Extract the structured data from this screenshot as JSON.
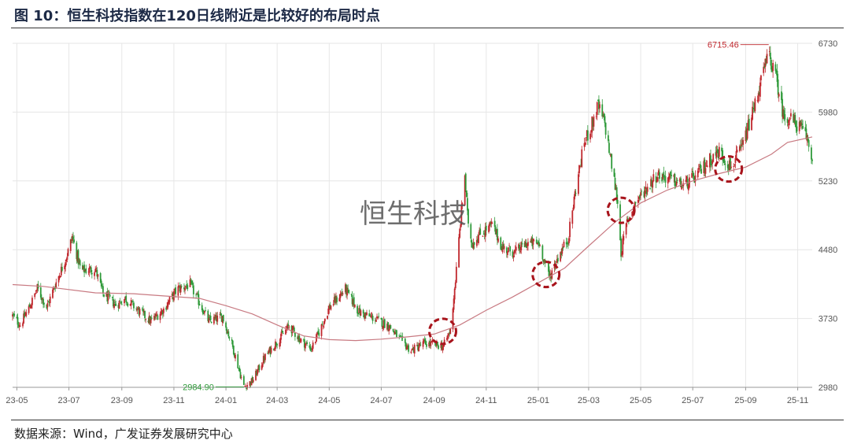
{
  "title": "图 10：恒生科技指数在120日线附近是比较好的布局时点",
  "source": "数据来源：Wind，广发证券发展研究中心",
  "colors": {
    "up": "#c0282e",
    "down": "#2f9a3a",
    "ma": "#c87a82",
    "marker": "#a8141c",
    "grid": "#e6e6e6"
  },
  "chart_data": {
    "type": "candlestick",
    "watermark": "恒生科技",
    "x_ticks": [
      "23-05",
      "23-07",
      "23-09",
      "23-11",
      "24-01",
      "24-03",
      "24-05",
      "24-07",
      "24-09",
      "24-11",
      "25-01",
      "25-03",
      "25-05",
      "25-07",
      "25-09",
      "25-11"
    ],
    "y_ticks": [
      2980,
      3730,
      4480,
      5230,
      5980,
      6730
    ],
    "ylim": [
      2980,
      6730
    ],
    "xlim": [
      "2023-04-26",
      "2025-11-18"
    ],
    "annotations": [
      {
        "date": "2025-09-28",
        "value": 6715.46,
        "label": "6715.46",
        "kind": "high"
      },
      {
        "date": "2024-01-22",
        "value": 2984.9,
        "label": "2984.90",
        "kind": "low"
      }
    ],
    "circles": [
      {
        "date": "2024-09-11",
        "value": 3590
      },
      {
        "date": "2025-01-10",
        "value": 4210
      },
      {
        "date": "2025-04-08",
        "value": 4910
      },
      {
        "date": "2025-08-12",
        "value": 5360
      }
    ],
    "price_path": [
      [
        "2023-04-26",
        3760
      ],
      [
        "2023-05-05",
        3660
      ],
      [
        "2023-05-18",
        3900
      ],
      [
        "2023-05-25",
        4060
      ],
      [
        "2023-06-05",
        3850
      ],
      [
        "2023-06-15",
        4100
      ],
      [
        "2023-06-28",
        4400
      ],
      [
        "2023-07-05",
        4620
      ],
      [
        "2023-07-15",
        4250
      ],
      [
        "2023-08-01",
        4270
      ],
      [
        "2023-08-10",
        4000
      ],
      [
        "2023-08-25",
        3880
      ],
      [
        "2023-09-05",
        3950
      ],
      [
        "2023-09-20",
        3820
      ],
      [
        "2023-10-05",
        3700
      ],
      [
        "2023-10-20",
        3830
      ],
      [
        "2023-11-05",
        4050
      ],
      [
        "2023-11-20",
        4100
      ],
      [
        "2023-12-01",
        3900
      ],
      [
        "2023-12-12",
        3700
      ],
      [
        "2023-12-28",
        3750
      ],
      [
        "2024-01-08",
        3450
      ],
      [
        "2024-01-22",
        2985
      ],
      [
        "2024-02-01",
        3050
      ],
      [
        "2024-02-15",
        3300
      ],
      [
        "2024-03-01",
        3480
      ],
      [
        "2024-03-15",
        3650
      ],
      [
        "2024-03-28",
        3500
      ],
      [
        "2024-04-10",
        3400
      ],
      [
        "2024-04-20",
        3600
      ],
      [
        "2024-05-01",
        3850
      ],
      [
        "2024-05-20",
        4050
      ],
      [
        "2024-06-05",
        3800
      ],
      [
        "2024-06-25",
        3720
      ],
      [
        "2024-07-10",
        3650
      ],
      [
        "2024-07-25",
        3480
      ],
      [
        "2024-08-05",
        3380
      ],
      [
        "2024-08-20",
        3460
      ],
      [
        "2024-09-05",
        3440
      ],
      [
        "2024-09-12",
        3430
      ],
      [
        "2024-09-20",
        3600
      ],
      [
        "2024-09-26",
        4150
      ],
      [
        "2024-10-02",
        4800
      ],
      [
        "2024-10-07",
        5300
      ],
      [
        "2024-10-10",
        4850
      ],
      [
        "2024-10-15",
        4550
      ],
      [
        "2024-10-25",
        4650
      ],
      [
        "2024-11-08",
        4750
      ],
      [
        "2024-11-20",
        4500
      ],
      [
        "2024-12-05",
        4450
      ],
      [
        "2024-12-18",
        4550
      ],
      [
        "2025-01-02",
        4550
      ],
      [
        "2025-01-14",
        4180
      ],
      [
        "2025-01-24",
        4400
      ],
      [
        "2025-02-05",
        4600
      ],
      [
        "2025-02-14",
        5150
      ],
      [
        "2025-02-24",
        5650
      ],
      [
        "2025-03-05",
        5850
      ],
      [
        "2025-03-12",
        6050
      ],
      [
        "2025-03-20",
        5850
      ],
      [
        "2025-03-28",
        5400
      ],
      [
        "2025-04-04",
        5000
      ],
      [
        "2025-04-08",
        4450
      ],
      [
        "2025-04-15",
        4780
      ],
      [
        "2025-04-25",
        5000
      ],
      [
        "2025-05-08",
        5150
      ],
      [
        "2025-05-20",
        5300
      ],
      [
        "2025-06-05",
        5250
      ],
      [
        "2025-06-20",
        5180
      ],
      [
        "2025-07-05",
        5280
      ],
      [
        "2025-07-20",
        5450
      ],
      [
        "2025-08-01",
        5550
      ],
      [
        "2025-08-15",
        5380
      ],
      [
        "2025-08-28",
        5600
      ],
      [
        "2025-09-10",
        6000
      ],
      [
        "2025-09-20",
        6350
      ],
      [
        "2025-09-28",
        6620
      ],
      [
        "2025-10-08",
        6300
      ],
      [
        "2025-10-15",
        5950
      ],
      [
        "2025-10-25",
        5900
      ],
      [
        "2025-11-05",
        5800
      ],
      [
        "2025-11-12",
        5700
      ],
      [
        "2025-11-18",
        5450
      ]
    ],
    "ma120": [
      [
        "2023-04-26",
        4100
      ],
      [
        "2023-06-01",
        4080
      ],
      [
        "2023-08-01",
        4010
      ],
      [
        "2023-09-15",
        4000
      ],
      [
        "2023-10-15",
        3980
      ],
      [
        "2023-12-01",
        3950
      ],
      [
        "2024-01-01",
        3870
      ],
      [
        "2024-02-01",
        3780
      ],
      [
        "2024-03-01",
        3660
      ],
      [
        "2024-04-01",
        3540
      ],
      [
        "2024-05-01",
        3500
      ],
      [
        "2024-06-01",
        3490
      ],
      [
        "2024-07-01",
        3505
      ],
      [
        "2024-08-01",
        3530
      ],
      [
        "2024-09-01",
        3560
      ],
      [
        "2024-10-01",
        3660
      ],
      [
        "2024-11-01",
        3820
      ],
      [
        "2024-12-01",
        3960
      ],
      [
        "2025-01-01",
        4120
      ],
      [
        "2025-02-01",
        4280
      ],
      [
        "2025-03-01",
        4520
      ],
      [
        "2025-04-01",
        4780
      ],
      [
        "2025-05-01",
        4990
      ],
      [
        "2025-06-01",
        5130
      ],
      [
        "2025-07-01",
        5230
      ],
      [
        "2025-08-01",
        5310
      ],
      [
        "2025-09-01",
        5380
      ],
      [
        "2025-10-01",
        5520
      ],
      [
        "2025-10-20",
        5650
      ],
      [
        "2025-11-18",
        5710
      ]
    ]
  }
}
